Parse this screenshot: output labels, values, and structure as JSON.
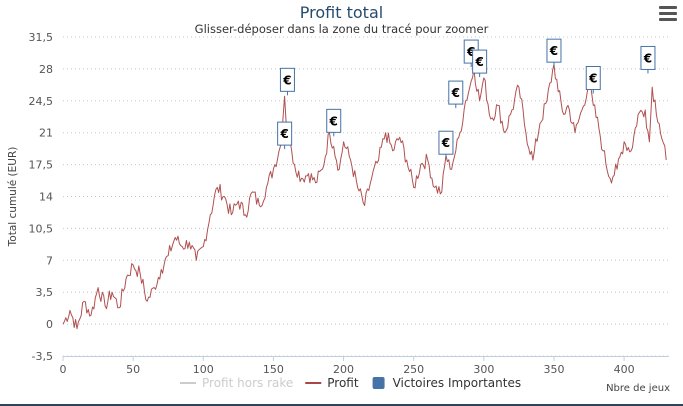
{
  "chart_data": {
    "type": "line",
    "title": "Profit total",
    "subtitle": "Glisser-déposer dans la zone du tracé pour zoomer",
    "ylabel": "Total cumulé (EUR)",
    "xlabel": "Nbre de jeux",
    "ylim": [
      -3.5,
      31.5
    ],
    "xlim": [
      0,
      432
    ],
    "y_ticks": [
      "-3,5",
      "0",
      "3,5",
      "7",
      "10,5",
      "14",
      "17,5",
      "21",
      "24,5",
      "28",
      "31,5"
    ],
    "y_tick_values": [
      -3.5,
      0,
      3.5,
      7,
      10.5,
      14,
      17.5,
      21,
      24.5,
      28,
      31.5
    ],
    "x_ticks": [
      "0",
      "50",
      "100",
      "150",
      "200",
      "250",
      "300",
      "350",
      "400"
    ],
    "x_tick_values": [
      0,
      50,
      100,
      150,
      200,
      250,
      300,
      350,
      400
    ],
    "grid": "horizontal-dotted",
    "legend": [
      {
        "name": "Profit hors rake",
        "color": "#cccccc",
        "symbol": "line"
      },
      {
        "name": "Profit",
        "color": "#aa4643",
        "symbol": "line"
      },
      {
        "name": "Victoires Importantes",
        "color": "#4572a7",
        "symbol": "square"
      }
    ],
    "series": [
      {
        "name": "Profit",
        "color": "#b05050",
        "x": [
          0,
          5,
          10,
          15,
          20,
          25,
          30,
          35,
          40,
          45,
          50,
          55,
          60,
          65,
          70,
          75,
          80,
          85,
          90,
          95,
          100,
          105,
          110,
          115,
          120,
          125,
          130,
          135,
          140,
          145,
          150,
          155,
          158,
          160,
          163,
          165,
          170,
          175,
          180,
          185,
          190,
          193,
          197,
          200,
          205,
          210,
          215,
          220,
          225,
          230,
          235,
          240,
          245,
          250,
          255,
          260,
          265,
          270,
          273,
          276,
          280,
          283,
          287,
          290,
          293,
          297,
          300,
          305,
          310,
          315,
          320,
          325,
          330,
          335,
          340,
          345,
          350,
          353,
          357,
          360,
          365,
          370,
          375,
          378,
          382,
          385,
          390,
          395,
          400,
          405,
          410,
          415,
          418,
          420,
          425,
          430
        ],
        "y": [
          0,
          1.5,
          -0.5,
          2.5,
          1,
          4,
          2,
          3.5,
          1.8,
          5,
          6.5,
          5.5,
          2.5,
          4,
          6,
          7.5,
          9.5,
          8.5,
          9,
          7,
          8.5,
          12,
          15,
          14,
          12,
          13.5,
          12,
          14.5,
          13,
          15,
          17,
          19.5,
          25,
          20.5,
          19,
          17.5,
          16,
          16.5,
          15.5,
          17,
          21,
          19.5,
          17,
          20,
          18,
          15,
          13,
          16,
          18,
          21,
          19,
          20.5,
          18,
          15,
          17.5,
          18,
          15,
          14.5,
          18.5,
          17,
          19,
          21,
          24.5,
          26,
          28,
          24.5,
          27,
          22.5,
          24,
          21,
          23.5,
          26,
          21,
          18,
          22,
          24.5,
          28.5,
          25.5,
          23,
          24,
          21,
          23.5,
          26.5,
          24,
          21.5,
          19,
          16,
          17,
          20,
          19,
          23,
          23.5,
          20,
          26,
          22,
          18
        ]
      }
    ],
    "markers": [
      {
        "label": "€",
        "x": 158,
        "y": 19.2
      },
      {
        "label": "€",
        "x": 160,
        "y": 25.1
      },
      {
        "label": "€",
        "x": 193,
        "y": 20.6
      },
      {
        "label": "€",
        "x": 273,
        "y": 18.2
      },
      {
        "label": "€",
        "x": 280,
        "y": 23.7
      },
      {
        "label": "€",
        "x": 291,
        "y": 28.2
      },
      {
        "label": "€",
        "x": 297,
        "y": 27.1
      },
      {
        "label": "€",
        "x": 350,
        "y": 28.3
      },
      {
        "label": "€",
        "x": 378,
        "y": 25.3
      },
      {
        "label": "€",
        "x": 417,
        "y": 27.5
      }
    ]
  }
}
